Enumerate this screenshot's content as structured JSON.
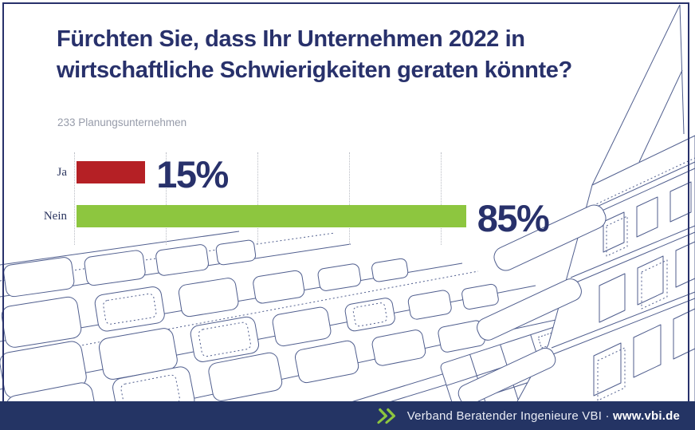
{
  "title": {
    "line1": "Fürchten Sie, dass Ihr Unternehmen 2022 in",
    "line2": "wirtschaftliche Schwierigkeiten geraten könnte?"
  },
  "subtitle": "233 Planungsunternehmen",
  "chart_data": {
    "type": "bar",
    "orientation": "horizontal",
    "title": "Fürchten Sie, dass Ihr Unternehmen 2022 in wirtschaftliche Schwierigkeiten geraten könnte?",
    "subtitle": "233 Planungsunternehmen",
    "categories": [
      "Ja",
      "Nein"
    ],
    "values": [
      15,
      85
    ],
    "value_labels": [
      "15%",
      "85%"
    ],
    "bar_colors": [
      "#b52025",
      "#8dc63f"
    ],
    "xlim": [
      0,
      100
    ],
    "gridlines_percent": [
      0,
      20,
      40,
      60,
      80
    ],
    "grid": "dotted-vertical",
    "legend": false
  },
  "footer": {
    "org_text": "Verband Beratender Ingenieure VBI",
    "separator": "·",
    "url": "www.vbi.de",
    "chevron_icon": "double-chevron-right"
  },
  "colors": {
    "navy": "#28316b",
    "footer_bg": "#243464",
    "red": "#b52025",
    "green": "#8dc63f",
    "grid": "#b9bcc4",
    "subtitle_gray": "#979caa",
    "wireframe": "#31427a",
    "chevron_green": "#8dc63f"
  }
}
